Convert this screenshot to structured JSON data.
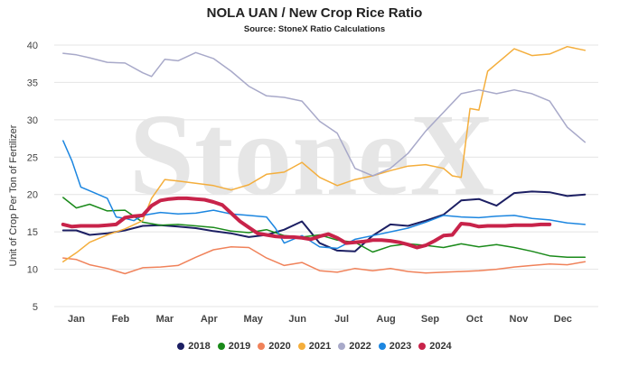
{
  "chart_data": {
    "type": "line",
    "title": "NOLA UAN / New Crop Rice Ratio",
    "subtitle": "Source: StoneX Ratio Calculations",
    "watermark": "StoneX",
    "ylabel": "Unit of Crop Per Ton of Fertilizer",
    "xlabel": "",
    "ylim": [
      5,
      40
    ],
    "yticks": [
      5,
      10,
      15,
      20,
      25,
      30,
      35,
      40
    ],
    "xlim": [
      0,
      12.3
    ],
    "xticks": [
      {
        "label": "Jan",
        "pos": 0.5
      },
      {
        "label": "Feb",
        "pos": 1.5
      },
      {
        "label": "Mar",
        "pos": 2.5
      },
      {
        "label": "Apr",
        "pos": 3.5
      },
      {
        "label": "May",
        "pos": 4.5
      },
      {
        "label": "Jun",
        "pos": 5.5
      },
      {
        "label": "Jul",
        "pos": 6.5
      },
      {
        "label": "Aug",
        "pos": 7.5
      },
      {
        "label": "Sep",
        "pos": 8.5
      },
      {
        "label": "Oct",
        "pos": 9.5
      },
      {
        "label": "Nov",
        "pos": 10.5
      },
      {
        "label": "Dec",
        "pos": 11.5
      }
    ],
    "grid": "horizontal",
    "legend_position": "bottom",
    "series": [
      {
        "name": "2018",
        "color": "#1c1f63",
        "width": 2,
        "x": [
          0.2,
          0.5,
          0.8,
          1.2,
          1.6,
          2.0,
          2.4,
          2.8,
          3.2,
          3.6,
          4.0,
          4.4,
          4.8,
          5.2,
          5.6,
          6.0,
          6.4,
          6.8,
          7.2,
          7.6,
          8.0,
          8.4,
          8.8,
          9.2,
          9.6,
          10.0,
          10.4,
          10.8,
          11.2,
          11.6,
          12.0
        ],
        "y": [
          15.2,
          15.2,
          14.6,
          14.8,
          15.2,
          15.8,
          15.9,
          15.7,
          15.5,
          15.1,
          14.8,
          14.3,
          14.6,
          15.3,
          16.4,
          13.5,
          12.5,
          12.4,
          14.5,
          16.0,
          15.8,
          16.5,
          17.3,
          19.2,
          19.4,
          18.5,
          20.2,
          20.4,
          20.3,
          19.8,
          20.0
        ]
      },
      {
        "name": "2019",
        "color": "#1a8a1a",
        "width": 1.5,
        "x": [
          0.2,
          0.5,
          0.8,
          1.2,
          1.6,
          2.0,
          2.4,
          2.8,
          3.2,
          3.6,
          4.0,
          4.4,
          4.8,
          5.2,
          5.6,
          6.0,
          6.4,
          6.8,
          7.2,
          7.6,
          8.0,
          8.4,
          8.8,
          9.2,
          9.6,
          10.0,
          10.4,
          10.8,
          11.2,
          11.6,
          12.0
        ],
        "y": [
          19.6,
          18.2,
          18.7,
          17.8,
          17.9,
          16.3,
          15.9,
          16.0,
          15.8,
          15.6,
          15.1,
          14.9,
          15.3,
          14.5,
          14.3,
          14.6,
          13.9,
          13.6,
          12.3,
          13.1,
          13.4,
          13.2,
          12.9,
          13.4,
          13.0,
          13.3,
          12.9,
          12.4,
          11.8,
          11.6,
          11.6
        ]
      },
      {
        "name": "2020",
        "color": "#f0825a",
        "width": 1.5,
        "x": [
          0.2,
          0.5,
          0.8,
          1.2,
          1.6,
          2.0,
          2.4,
          2.8,
          3.2,
          3.6,
          4.0,
          4.4,
          4.8,
          5.2,
          5.6,
          6.0,
          6.4,
          6.8,
          7.2,
          7.6,
          8.0,
          8.4,
          8.8,
          9.2,
          9.6,
          10.0,
          10.4,
          10.8,
          11.2,
          11.6,
          12.0
        ],
        "y": [
          11.5,
          11.3,
          10.6,
          10.1,
          9.4,
          10.2,
          10.3,
          10.5,
          11.6,
          12.6,
          13.0,
          12.9,
          11.5,
          10.5,
          10.9,
          9.8,
          9.6,
          10.1,
          9.8,
          10.1,
          9.7,
          9.5,
          9.6,
          9.7,
          9.8,
          10.0,
          10.3,
          10.5,
          10.7,
          10.6,
          11.0
        ]
      },
      {
        "name": "2021",
        "color": "#f4ae3c",
        "width": 1.5,
        "x": [
          0.2,
          0.5,
          0.8,
          1.2,
          1.6,
          2.0,
          2.2,
          2.5,
          2.8,
          3.2,
          3.6,
          4.0,
          4.4,
          4.8,
          5.2,
          5.6,
          6.0,
          6.4,
          6.8,
          7.2,
          7.6,
          8.0,
          8.4,
          8.8,
          9.0,
          9.2,
          9.4,
          9.6,
          9.8,
          10.0,
          10.2,
          10.4,
          10.8,
          11.2,
          11.6,
          12.0
        ],
        "y": [
          11.0,
          12.2,
          13.6,
          14.6,
          15.4,
          16.5,
          19.5,
          22.0,
          21.8,
          21.5,
          21.2,
          20.6,
          21.3,
          22.7,
          23.0,
          24.3,
          22.3,
          21.2,
          22.0,
          22.5,
          23.2,
          23.8,
          24.0,
          23.5,
          22.5,
          22.3,
          31.5,
          31.3,
          36.5,
          37.5,
          38.5,
          39.5,
          38.6,
          38.8,
          39.8,
          39.3
        ]
      },
      {
        "name": "2022",
        "color": "#a8a9c9",
        "width": 1.5,
        "x": [
          0.2,
          0.5,
          0.8,
          1.2,
          1.6,
          2.0,
          2.2,
          2.5,
          2.8,
          3.2,
          3.6,
          4.0,
          4.4,
          4.8,
          5.2,
          5.6,
          6.0,
          6.4,
          6.8,
          7.2,
          7.6,
          8.0,
          8.4,
          8.8,
          9.2,
          9.6,
          10.0,
          10.4,
          10.8,
          11.2,
          11.6,
          12.0
        ],
        "y": [
          38.9,
          38.7,
          38.3,
          37.7,
          37.6,
          36.3,
          35.8,
          38.1,
          37.9,
          39.0,
          38.2,
          36.5,
          34.5,
          33.2,
          33.0,
          32.5,
          29.8,
          28.2,
          23.5,
          22.5,
          23.5,
          25.5,
          28.5,
          31.0,
          33.5,
          34.0,
          33.5,
          34.0,
          33.5,
          32.5,
          29.0,
          27.0
        ]
      },
      {
        "name": "2023",
        "color": "#1c86e0",
        "width": 1.5,
        "x": [
          0.2,
          0.4,
          0.6,
          0.8,
          1.2,
          1.4,
          1.6,
          1.8,
          2.0,
          2.4,
          2.8,
          3.2,
          3.6,
          4.0,
          4.4,
          4.8,
          5.0,
          5.2,
          5.6,
          6.0,
          6.4,
          6.8,
          7.2,
          7.6,
          8.0,
          8.4,
          8.8,
          9.2,
          9.6,
          10.0,
          10.4,
          10.8,
          11.2,
          11.6,
          12.0
        ],
        "y": [
          27.2,
          24.5,
          21.0,
          20.5,
          19.5,
          17.0,
          16.8,
          16.5,
          17.2,
          17.6,
          17.4,
          17.5,
          17.9,
          17.4,
          17.2,
          17.0,
          15.5,
          13.5,
          14.5,
          13.0,
          12.8,
          14.0,
          14.5,
          15.0,
          15.5,
          16.3,
          17.2,
          17.0,
          16.9,
          17.1,
          17.2,
          16.8,
          16.6,
          16.2,
          16.0
        ]
      },
      {
        "name": "2024",
        "color": "#c8234a",
        "width": 4,
        "x": [
          0.2,
          0.4,
          0.6,
          0.8,
          1.0,
          1.2,
          1.4,
          1.6,
          1.8,
          2.0,
          2.2,
          2.4,
          2.6,
          2.8,
          3.0,
          3.2,
          3.4,
          3.6,
          3.8,
          4.0,
          4.2,
          4.4,
          4.6,
          4.8,
          5.0,
          5.2,
          5.4,
          5.6,
          5.8,
          6.0,
          6.2,
          6.4,
          6.6,
          6.8,
          7.0,
          7.2,
          7.4,
          7.6,
          7.8,
          8.0,
          8.2,
          8.4,
          8.6,
          8.8,
          9.0,
          9.2,
          9.4,
          9.6,
          9.8,
          10.0,
          10.2,
          10.4,
          10.6,
          10.8,
          11.0,
          11.2
        ],
        "y": [
          16.0,
          15.7,
          15.8,
          15.8,
          15.8,
          15.9,
          16.0,
          16.9,
          17.1,
          17.2,
          18.5,
          19.2,
          19.4,
          19.5,
          19.5,
          19.4,
          19.3,
          19.0,
          18.6,
          17.5,
          16.4,
          15.6,
          14.8,
          14.6,
          14.4,
          14.3,
          14.3,
          14.2,
          14.0,
          14.4,
          14.7,
          14.2,
          13.5,
          13.6,
          13.7,
          13.9,
          13.9,
          13.8,
          13.6,
          13.3,
          12.9,
          13.2,
          13.8,
          14.5,
          14.6,
          16.1,
          16.0,
          15.7,
          15.8,
          15.8,
          15.8,
          15.9,
          15.9,
          15.9,
          16.0,
          16.0
        ]
      }
    ]
  }
}
